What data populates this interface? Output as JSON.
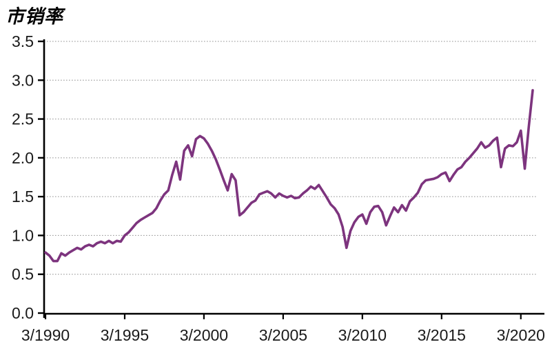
{
  "title": "市销率",
  "colors": {
    "line": "#7D347E",
    "axis": "#000000",
    "gridline": "#909090",
    "tick_label": "#1A1A1A",
    "background": "#FFFFFF"
  },
  "chart_data": {
    "type": "line",
    "title": "市销率",
    "series_name": "市销率",
    "xlabel": "",
    "ylabel": "",
    "legend": "none",
    "grid": "horizontal-dotted",
    "ylim": [
      0,
      3.5
    ],
    "y_tick_step": 0.5,
    "y_tick_labels": [
      "0.0",
      "0.5",
      "1.0",
      "1.5",
      "2.0",
      "2.5",
      "3.0",
      "3.5"
    ],
    "x_tick_labels": [
      "3/1990",
      "3/1995",
      "3/2000",
      "3/2005",
      "3/2010",
      "3/2015",
      "3/2020"
    ],
    "x_start": "3/1990",
    "x_end": "12/2020",
    "x_frequency": "quarterly",
    "points_per_x_tick": 20,
    "values": [
      0.78,
      0.74,
      0.67,
      0.67,
      0.77,
      0.74,
      0.78,
      0.81,
      0.84,
      0.82,
      0.86,
      0.88,
      0.86,
      0.9,
      0.92,
      0.9,
      0.93,
      0.9,
      0.93,
      0.92,
      1.0,
      1.04,
      1.1,
      1.16,
      1.2,
      1.23,
      1.26,
      1.29,
      1.35,
      1.45,
      1.53,
      1.58,
      1.78,
      1.95,
      1.72,
      2.09,
      2.16,
      2.02,
      2.24,
      2.28,
      2.25,
      2.18,
      2.09,
      1.98,
      1.85,
      1.71,
      1.58,
      1.79,
      1.71,
      1.26,
      1.3,
      1.36,
      1.42,
      1.45,
      1.53,
      1.55,
      1.57,
      1.54,
      1.49,
      1.54,
      1.51,
      1.49,
      1.51,
      1.48,
      1.49,
      1.54,
      1.58,
      1.63,
      1.6,
      1.65,
      1.57,
      1.49,
      1.4,
      1.35,
      1.27,
      1.11,
      0.84,
      1.06,
      1.17,
      1.24,
      1.27,
      1.15,
      1.3,
      1.37,
      1.38,
      1.3,
      1.13,
      1.25,
      1.36,
      1.3,
      1.39,
      1.32,
      1.44,
      1.49,
      1.55,
      1.66,
      1.71,
      1.72,
      1.73,
      1.75,
      1.79,
      1.81,
      1.7,
      1.78,
      1.85,
      1.88,
      1.95,
      2.0,
      2.06,
      2.12,
      2.2,
      2.13,
      2.16,
      2.22,
      2.26,
      1.88,
      2.12,
      2.16,
      2.15,
      2.2,
      2.35,
      1.86,
      2.4,
      2.87
    ]
  }
}
